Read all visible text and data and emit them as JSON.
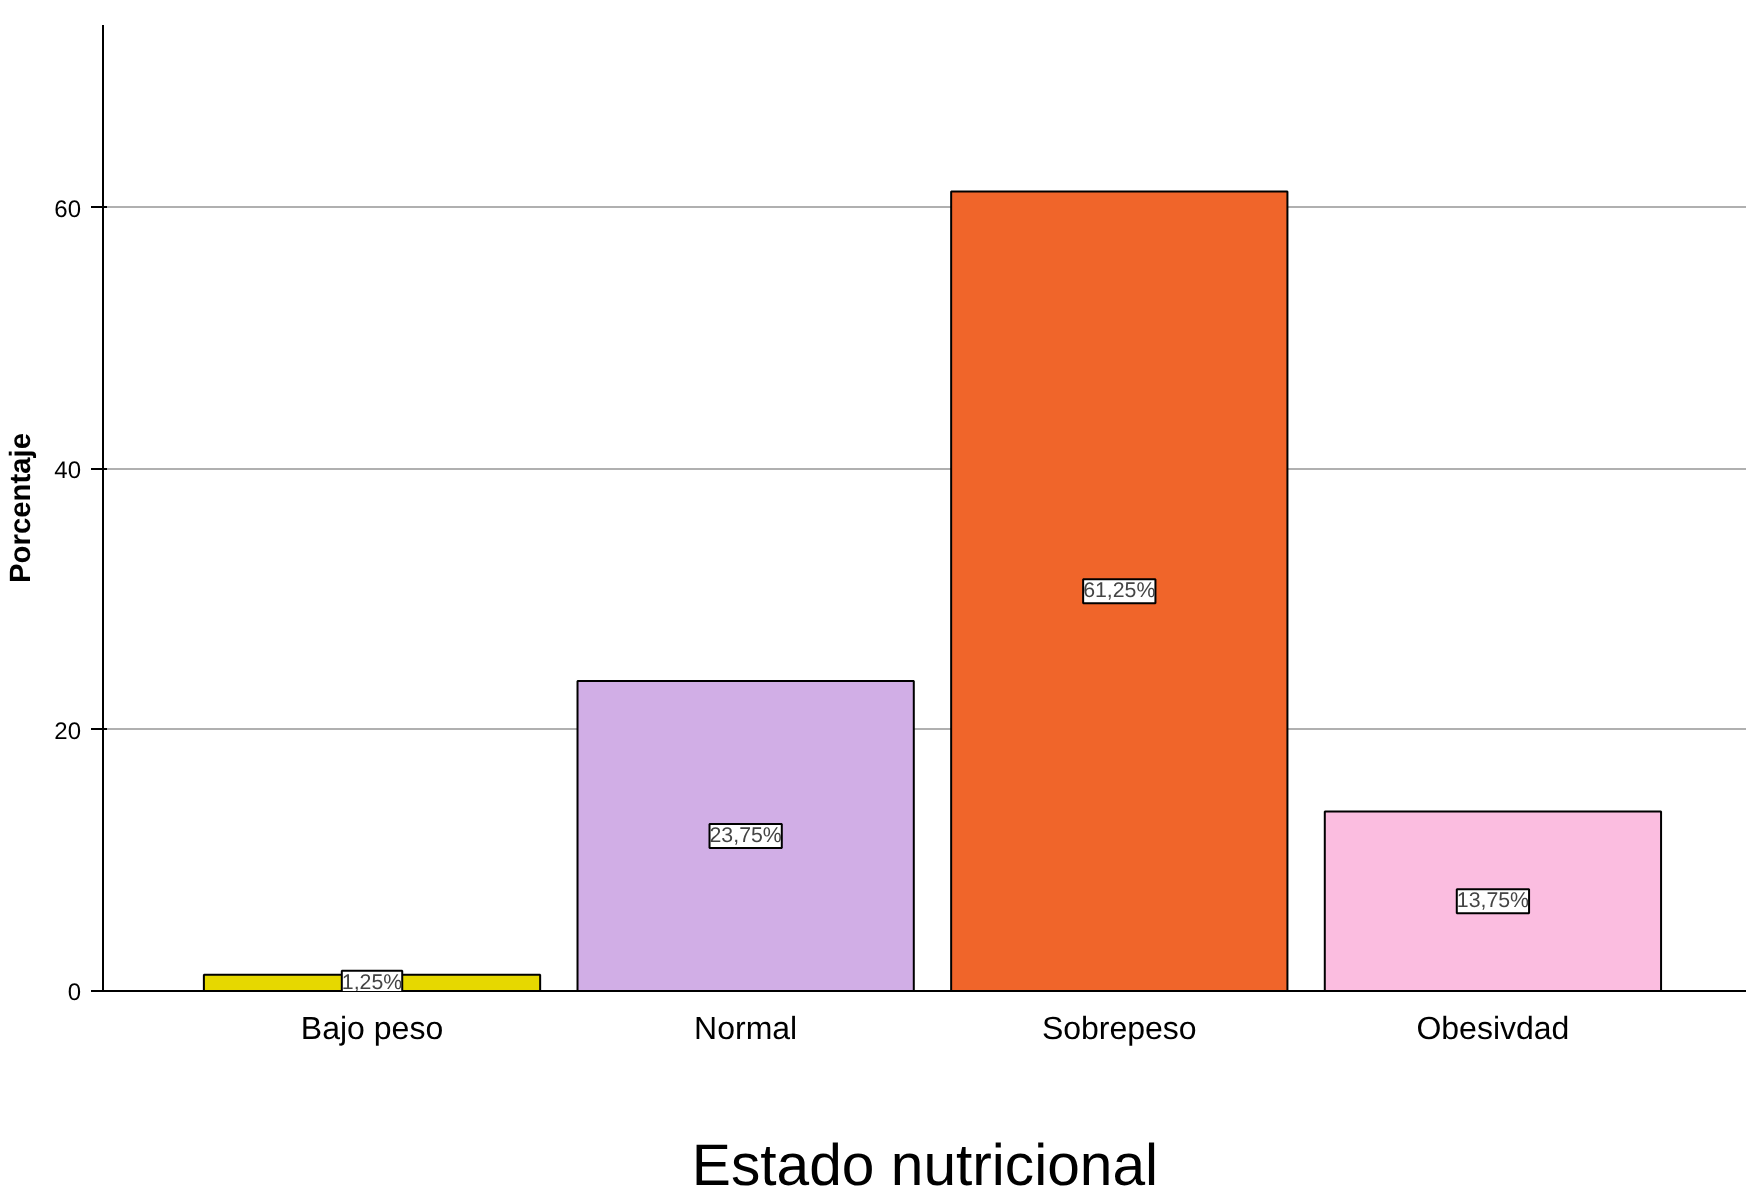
{
  "chart_data": {
    "type": "bar",
    "xlabel": "Estado nutricional",
    "ylabel": "Porcentaje",
    "categories": [
      "Bajo peso",
      "Normal",
      "Sobrepeso",
      "Obesivdad"
    ],
    "values": [
      1.25,
      23.75,
      61.25,
      13.75
    ],
    "colors": [
      "#e6d800",
      "#d1aee6",
      "#f0652a",
      "#fbbde0"
    ],
    "value_labels": [
      "1,25%",
      "23,75%",
      "61,25%",
      "13,75%"
    ],
    "ylim": [
      0,
      74
    ],
    "yticks": [
      0,
      20,
      40,
      60
    ],
    "grid": "y"
  }
}
